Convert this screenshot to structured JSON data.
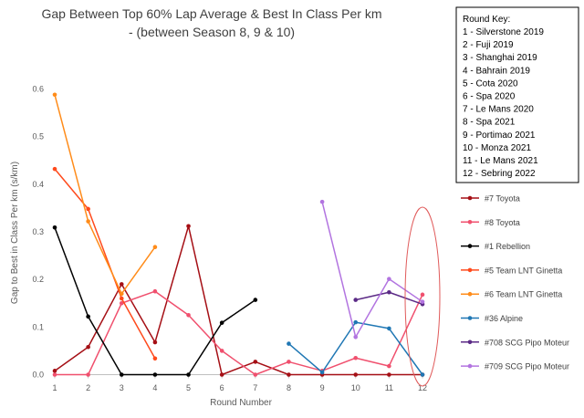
{
  "chart_data": {
    "type": "line",
    "title_lines": [
      "Gap Between Top 60% Lap Average & Best In Class Per km",
      "- (between Season 8, 9 & 10)"
    ],
    "xlabel": "Round Number",
    "ylabel": "Gap to Best in Class Per km (s/km)",
    "xlim": [
      1,
      12
    ],
    "ylim": [
      0,
      0.6
    ],
    "x_ticks": [
      1,
      2,
      3,
      4,
      5,
      6,
      7,
      8,
      9,
      10,
      11,
      12
    ],
    "y_ticks": [
      0,
      0.1,
      0.2,
      0.3,
      0.4,
      0.5,
      0.6
    ],
    "y_tick_labels": [
      "0.0",
      "0.1",
      "0.2",
      "0.3",
      "0.4",
      "0.5",
      "0.6"
    ],
    "grid": false,
    "legend_position": "right",
    "series": [
      {
        "name": "#7 Toyota",
        "color": "#a50f15",
        "points": [
          [
            1,
            0.008
          ],
          [
            2,
            0.058
          ],
          [
            3,
            0.19
          ],
          [
            4,
            0.068
          ],
          [
            5,
            0.312
          ],
          [
            6,
            0.0
          ],
          [
            7,
            0.027
          ],
          [
            8,
            0.0
          ],
          [
            9,
            0.0
          ],
          [
            10,
            0.0
          ],
          [
            11,
            0.0
          ],
          [
            12,
            0.0
          ]
        ]
      },
      {
        "name": "#8 Toyota",
        "color": "#f0506e",
        "points": [
          [
            1,
            0.0
          ],
          [
            2,
            0.0
          ],
          [
            3,
            0.15
          ],
          [
            4,
            0.175
          ],
          [
            5,
            0.125
          ],
          [
            6,
            0.05
          ],
          [
            7,
            0.0
          ],
          [
            8,
            0.027
          ],
          [
            9,
            0.008
          ],
          [
            10,
            0.035
          ],
          [
            11,
            0.018
          ],
          [
            12,
            0.168
          ]
        ]
      },
      {
        "name": "#1 Rebellion",
        "color": "#000000",
        "points": [
          [
            1,
            0.309
          ],
          [
            2,
            0.122
          ],
          [
            3,
            0.0
          ],
          [
            4,
            0.0
          ],
          [
            5,
            0.0
          ],
          [
            6,
            0.109
          ],
          [
            7,
            0.157
          ]
        ]
      },
      {
        "name": "#5 Team LNT Ginetta",
        "color": "#ff4a1c",
        "points": [
          [
            1,
            0.432
          ],
          [
            2,
            0.348
          ],
          [
            3,
            0.16
          ],
          [
            4,
            0.034
          ]
        ]
      },
      {
        "name": "#6 Team LNT Ginetta",
        "color": "#ff8c1a",
        "points": [
          [
            1,
            0.588
          ],
          [
            2,
            0.322
          ],
          [
            3,
            0.17
          ],
          [
            4,
            0.268
          ]
        ]
      },
      {
        "name": "#36 Alpine",
        "color": "#1f77b4",
        "points": [
          [
            8,
            0.065
          ],
          [
            9,
            0.005
          ],
          [
            10,
            0.11
          ],
          [
            11,
            0.097
          ],
          [
            12,
            0.0
          ]
        ]
      },
      {
        "name": "#708 SCG Pipo Moteur",
        "color": "#5b2a86",
        "points": [
          [
            10,
            0.157
          ],
          [
            11,
            0.173
          ],
          [
            12,
            0.148
          ]
        ]
      },
      {
        "name": "#709 SCG Pipo Moteur",
        "color": "#b274e0",
        "points": [
          [
            9,
            0.363
          ],
          [
            10,
            0.079
          ],
          [
            11,
            0.201
          ],
          [
            12,
            0.153
          ]
        ]
      }
    ],
    "highlight_ellipse": {
      "x": 12,
      "color": "#e05a5a"
    },
    "round_key": {
      "title": "Round Key:",
      "items": [
        "1 - Silverstone 2019",
        "2 - Fuji 2019",
        "3 - Shanghai 2019",
        "4 - Bahrain 2019",
        "5 - Cota 2020",
        "6 - Spa 2020",
        "7 - Le Mans 2020",
        "8 - Spa 2021",
        "9 - Portimao 2021",
        "10 - Monza 2021",
        "11 - Le Mans 2021",
        "12 - Sebring 2022"
      ]
    }
  }
}
